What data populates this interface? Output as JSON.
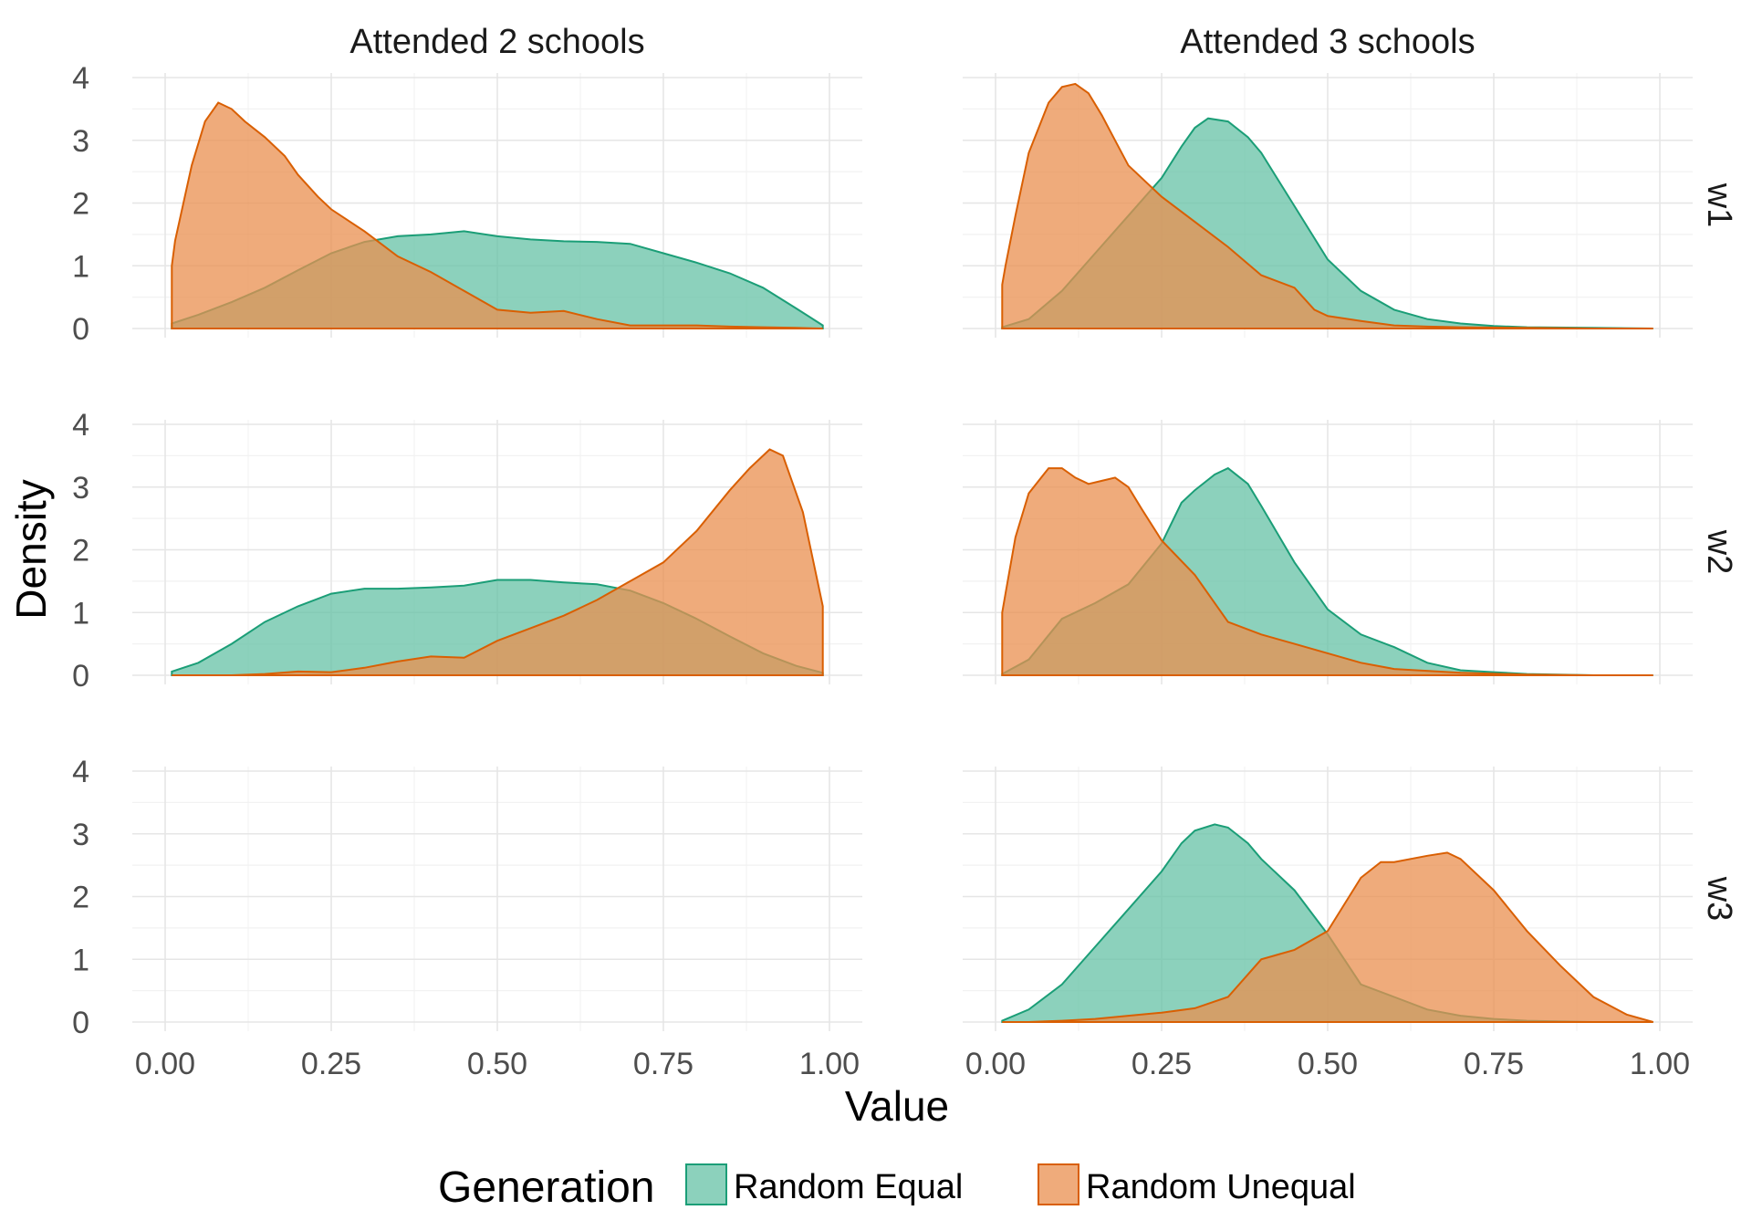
{
  "chart_data": {
    "type": "area",
    "subtype": "faceted-density",
    "xlabel": "Value",
    "ylabel": "Density",
    "xlim": [
      0,
      1
    ],
    "ylim": [
      0,
      4
    ],
    "x_ticks": [
      "0.00",
      "0.25",
      "0.50",
      "0.75",
      "1.00"
    ],
    "x_tick_values": [
      0,
      0.25,
      0.5,
      0.75,
      1.0
    ],
    "y_ticks": [
      "0",
      "1",
      "2",
      "3",
      "4"
    ],
    "y_tick_values": [
      0,
      1,
      2,
      3,
      4
    ],
    "grid": true,
    "legend": {
      "title": "Generation",
      "position": "bottom",
      "entries": [
        "Random Equal",
        "Random Unequal"
      ]
    },
    "colors": {
      "Random Equal": {
        "fill": "#66c2a5",
        "stroke": "#1b9e77"
      },
      "Random Unequal": {
        "fill": "#e98f4f",
        "stroke": "#d95f02"
      }
    },
    "col_facets": [
      "Attended 2 schools",
      "Attended 3 schools"
    ],
    "row_facets": [
      "w1",
      "w2",
      "w3"
    ],
    "panels": [
      {
        "col": "Attended 2 schools",
        "row": "w1",
        "series": [
          {
            "name": "Random Equal",
            "x": [
              0.01,
              0.05,
              0.1,
              0.15,
              0.2,
              0.25,
              0.3,
              0.35,
              0.4,
              0.45,
              0.5,
              0.55,
              0.6,
              0.65,
              0.7,
              0.75,
              0.8,
              0.85,
              0.9,
              0.95,
              0.99
            ],
            "y": [
              0.08,
              0.22,
              0.42,
              0.65,
              0.93,
              1.2,
              1.38,
              1.47,
              1.5,
              1.55,
              1.47,
              1.42,
              1.39,
              1.38,
              1.35,
              1.2,
              1.05,
              0.88,
              0.65,
              0.32,
              0.05
            ]
          },
          {
            "name": "Random Unequal",
            "x": [
              0.01,
              0.015,
              0.04,
              0.06,
              0.08,
              0.1,
              0.12,
              0.15,
              0.18,
              0.2,
              0.23,
              0.25,
              0.3,
              0.35,
              0.4,
              0.45,
              0.5,
              0.55,
              0.6,
              0.65,
              0.7,
              0.75,
              0.8,
              0.85,
              0.9,
              0.95,
              0.99
            ],
            "y": [
              1.0,
              1.4,
              2.6,
              3.3,
              3.6,
              3.5,
              3.3,
              3.05,
              2.75,
              2.45,
              2.1,
              1.9,
              1.55,
              1.15,
              0.9,
              0.6,
              0.3,
              0.25,
              0.28,
              0.15,
              0.05,
              0.05,
              0.05,
              0.03,
              0.02,
              0.01,
              0.0
            ]
          }
        ]
      },
      {
        "col": "Attended 3 schools",
        "row": "w1",
        "series": [
          {
            "name": "Random Equal",
            "x": [
              0.01,
              0.05,
              0.1,
              0.15,
              0.2,
              0.25,
              0.28,
              0.3,
              0.32,
              0.35,
              0.38,
              0.4,
              0.45,
              0.5,
              0.55,
              0.6,
              0.65,
              0.7,
              0.75,
              0.8,
              0.9,
              0.99
            ],
            "y": [
              0.02,
              0.15,
              0.6,
              1.2,
              1.8,
              2.4,
              2.9,
              3.2,
              3.35,
              3.3,
              3.05,
              2.8,
              1.95,
              1.1,
              0.6,
              0.3,
              0.15,
              0.08,
              0.04,
              0.02,
              0.01,
              0.0
            ]
          },
          {
            "name": "Random Unequal",
            "x": [
              0.01,
              0.015,
              0.03,
              0.05,
              0.08,
              0.1,
              0.12,
              0.14,
              0.16,
              0.18,
              0.2,
              0.25,
              0.3,
              0.35,
              0.4,
              0.45,
              0.48,
              0.5,
              0.55,
              0.6,
              0.65,
              0.7,
              0.8,
              0.9,
              0.99
            ],
            "y": [
              0.7,
              1.0,
              1.8,
              2.8,
              3.6,
              3.85,
              3.9,
              3.75,
              3.4,
              3.0,
              2.6,
              2.1,
              1.7,
              1.3,
              0.85,
              0.65,
              0.3,
              0.2,
              0.12,
              0.05,
              0.03,
              0.02,
              0.01,
              0.0,
              0.0
            ]
          }
        ]
      },
      {
        "col": "Attended 2 schools",
        "row": "w2",
        "series": [
          {
            "name": "Random Equal",
            "x": [
              0.01,
              0.05,
              0.1,
              0.15,
              0.2,
              0.25,
              0.3,
              0.35,
              0.4,
              0.45,
              0.5,
              0.55,
              0.6,
              0.65,
              0.7,
              0.75,
              0.8,
              0.85,
              0.9,
              0.95,
              0.99
            ],
            "y": [
              0.06,
              0.2,
              0.5,
              0.85,
              1.1,
              1.3,
              1.38,
              1.38,
              1.4,
              1.43,
              1.52,
              1.52,
              1.48,
              1.45,
              1.35,
              1.15,
              0.9,
              0.62,
              0.35,
              0.15,
              0.04
            ]
          },
          {
            "name": "Random Unequal",
            "x": [
              0.01,
              0.1,
              0.15,
              0.2,
              0.25,
              0.3,
              0.35,
              0.4,
              0.45,
              0.5,
              0.55,
              0.6,
              0.65,
              0.7,
              0.75,
              0.8,
              0.85,
              0.88,
              0.91,
              0.93,
              0.96,
              0.99
            ],
            "y": [
              0.0,
              0.0,
              0.02,
              0.06,
              0.05,
              0.12,
              0.22,
              0.3,
              0.28,
              0.55,
              0.75,
              0.95,
              1.2,
              1.5,
              1.8,
              2.3,
              2.95,
              3.3,
              3.6,
              3.5,
              2.6,
              1.1
            ]
          }
        ]
      },
      {
        "col": "Attended 3 schools",
        "row": "w2",
        "series": [
          {
            "name": "Random Equal",
            "x": [
              0.01,
              0.05,
              0.1,
              0.15,
              0.2,
              0.25,
              0.28,
              0.3,
              0.33,
              0.35,
              0.38,
              0.4,
              0.45,
              0.5,
              0.55,
              0.6,
              0.65,
              0.7,
              0.75,
              0.8,
              0.9,
              0.99
            ],
            "y": [
              0.02,
              0.25,
              0.9,
              1.15,
              1.45,
              2.1,
              2.75,
              2.95,
              3.2,
              3.3,
              3.05,
              2.7,
              1.8,
              1.05,
              0.65,
              0.45,
              0.2,
              0.08,
              0.05,
              0.02,
              0.0,
              0.0
            ]
          },
          {
            "name": "Random Unequal",
            "x": [
              0.01,
              0.015,
              0.03,
              0.05,
              0.08,
              0.1,
              0.12,
              0.14,
              0.16,
              0.18,
              0.2,
              0.22,
              0.25,
              0.3,
              0.35,
              0.4,
              0.45,
              0.5,
              0.55,
              0.6,
              0.7,
              0.8,
              0.9,
              0.99
            ],
            "y": [
              1.0,
              1.3,
              2.2,
              2.9,
              3.3,
              3.3,
              3.15,
              3.05,
              3.1,
              3.15,
              3.0,
              2.65,
              2.15,
              1.6,
              0.85,
              0.65,
              0.5,
              0.35,
              0.2,
              0.1,
              0.04,
              0.01,
              0.0,
              0.0
            ]
          }
        ]
      },
      {
        "col": "Attended 3 schools",
        "row": "w3",
        "series": [
          {
            "name": "Random Equal",
            "x": [
              0.01,
              0.05,
              0.1,
              0.15,
              0.2,
              0.25,
              0.28,
              0.3,
              0.33,
              0.35,
              0.38,
              0.4,
              0.45,
              0.5,
              0.55,
              0.6,
              0.65,
              0.7,
              0.75,
              0.8,
              0.9,
              0.99
            ],
            "y": [
              0.02,
              0.2,
              0.6,
              1.2,
              1.8,
              2.4,
              2.85,
              3.05,
              3.15,
              3.1,
              2.85,
              2.6,
              2.1,
              1.4,
              0.6,
              0.4,
              0.2,
              0.1,
              0.05,
              0.02,
              0.0,
              0.0
            ]
          },
          {
            "name": "Random Unequal",
            "x": [
              0.01,
              0.05,
              0.1,
              0.15,
              0.2,
              0.25,
              0.3,
              0.35,
              0.4,
              0.45,
              0.5,
              0.55,
              0.58,
              0.6,
              0.65,
              0.68,
              0.7,
              0.75,
              0.8,
              0.85,
              0.9,
              0.95,
              0.99
            ],
            "y": [
              0.0,
              0.0,
              0.02,
              0.05,
              0.1,
              0.15,
              0.22,
              0.4,
              1.0,
              1.15,
              1.45,
              2.3,
              2.55,
              2.55,
              2.65,
              2.7,
              2.6,
              2.1,
              1.45,
              0.9,
              0.4,
              0.12,
              0.0
            ]
          }
        ]
      }
    ]
  }
}
